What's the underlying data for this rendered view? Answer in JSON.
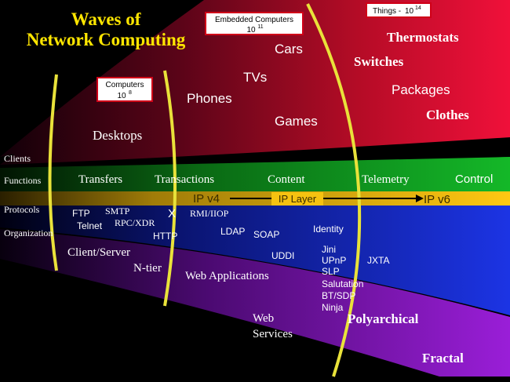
{
  "title_line1": "Waves of",
  "title_line2": "Network Computing",
  "wave_labels": {
    "computers": {
      "name": "Computers",
      "count": "10^8",
      "base": "10",
      "exp": "8"
    },
    "embedded": {
      "name": "Embedded Computers",
      "count": "10^11",
      "base": "10",
      "exp": "11"
    },
    "things": {
      "name": "Things - ",
      "count": "10^14",
      "base": "10",
      "exp": "14"
    }
  },
  "row_labels": [
    "Clients",
    "Functions",
    "Protocols",
    "Organization"
  ],
  "clients": [
    "Desktops",
    "Phones",
    "TVs",
    "Cars",
    "Games",
    "Thermostats",
    "Switches",
    "Packages",
    "Clothes"
  ],
  "functions": [
    "Transfers",
    "Transactions",
    "Content",
    "Telemetry",
    "Control"
  ],
  "ip_layer": {
    "ipv4": "IP v4",
    "layer": "IP Layer",
    "ipv6": "IP v6"
  },
  "protocols": [
    "FTP",
    "Telnet",
    "SMTP",
    "RPC/XDR",
    "X",
    "HTTP",
    "RMI/IIOP",
    "LDAP",
    "SOAP",
    "Identity",
    "UDDI",
    "Jini",
    "UPnP",
    "SLP",
    "Salutation",
    "BT/SDP",
    "Ninja",
    "JXTA"
  ],
  "organization": [
    "Client/Server",
    "N-tier",
    "Web Applications",
    "Web",
    "Services",
    "Polyarchical",
    "Fractal"
  ],
  "colors": {
    "red": "#cc0c2a",
    "green": "#10a020",
    "yellow": "#f6c210",
    "blue": "#1a2fd6",
    "purple": "#8a18c8",
    "wave_line": "#e9e23a",
    "title": "#ffe600"
  }
}
